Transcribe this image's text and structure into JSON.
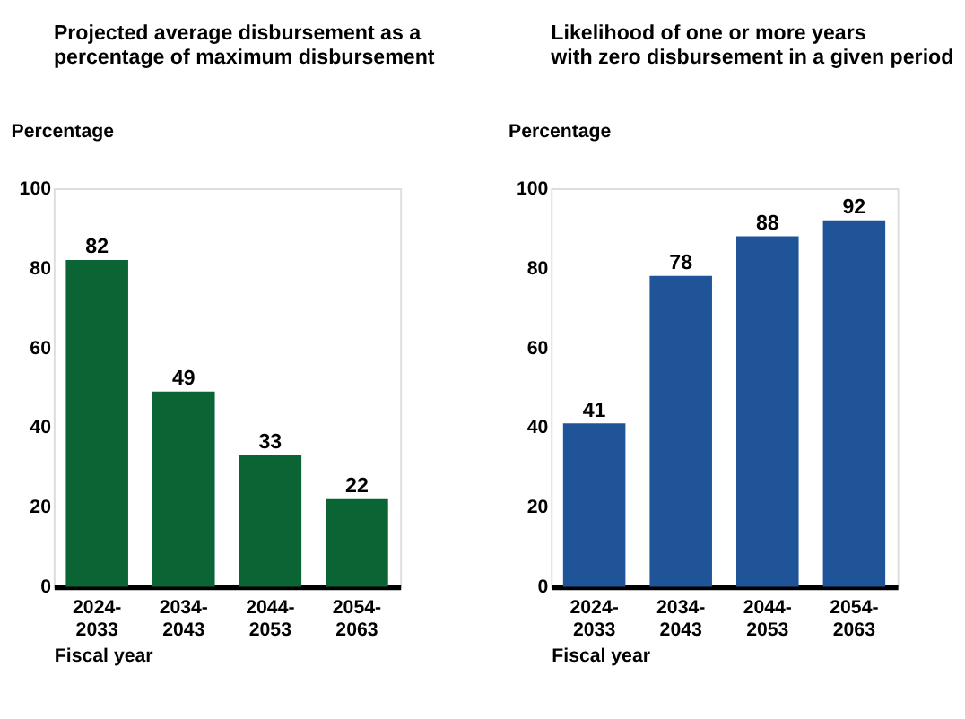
{
  "chart_data": [
    {
      "type": "bar",
      "title": "Projected average disbursement as a\npercentage of maximum disbursement",
      "ylabel": "Percentage",
      "xlabel": "Fiscal year",
      "categories": [
        "2024-2033",
        "2034-2043",
        "2044-2053",
        "2054-2063"
      ],
      "values": [
        82,
        49,
        33,
        22
      ],
      "color": "#0b6434",
      "ylim": [
        0,
        100
      ],
      "yticks": [
        0,
        20,
        40,
        60,
        80,
        100
      ],
      "data_labels": true,
      "grid": false
    },
    {
      "type": "bar",
      "title": "Likelihood of one or more years\nwith zero disbursement in a given period",
      "ylabel": "Percentage",
      "xlabel": "Fiscal year",
      "categories": [
        "2024-2033",
        "2034-2043",
        "2044-2053",
        "2054-2063"
      ],
      "values": [
        41,
        78,
        88,
        92
      ],
      "color": "#1f5499",
      "ylim": [
        0,
        100
      ],
      "yticks": [
        0,
        20,
        40,
        60,
        80,
        100
      ],
      "data_labels": true,
      "grid": false
    }
  ]
}
